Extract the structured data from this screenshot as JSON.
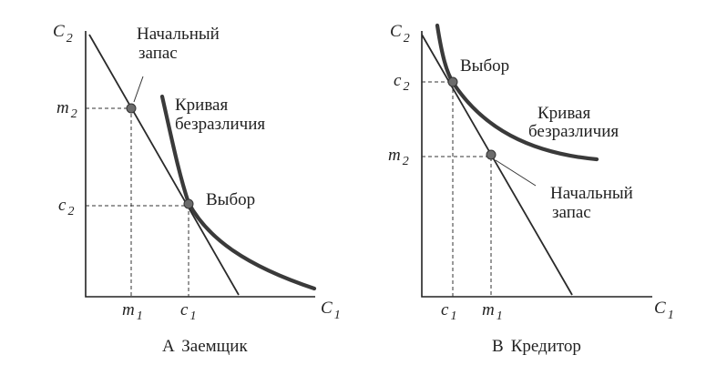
{
  "panels": [
    {
      "y_axis": "C",
      "y_axis_sub": "2",
      "x_axis": "C",
      "x_axis_sub": "1",
      "tick_x1": "m",
      "tick_x1_sub": "1",
      "tick_x2": "c",
      "tick_x2_sub": "1",
      "tick_y1": "m",
      "tick_y1_sub": "2",
      "tick_y2": "c",
      "tick_y2_sub": "2",
      "endowment_line1": "Начальный",
      "endowment_line2": "запас",
      "curve_line1": "Кривая",
      "curve_line2": "безразличия",
      "choice_label": "Выбор",
      "caption_letter": "А",
      "caption_text": "Заемщик"
    },
    {
      "y_axis": "C",
      "y_axis_sub": "2",
      "x_axis": "C",
      "x_axis_sub": "1",
      "tick_x1": "c",
      "tick_x1_sub": "1",
      "tick_x2": "m",
      "tick_x2_sub": "1",
      "tick_y1": "c",
      "tick_y1_sub": "2",
      "tick_y2": "m",
      "tick_y2_sub": "2",
      "endowment_line1": "Начальный",
      "endowment_line2": "запас",
      "curve_line1": "Кривая",
      "curve_line2": "безразличия",
      "choice_label": "Выбор",
      "caption_letter": "В",
      "caption_text": "Кредитор"
    }
  ]
}
